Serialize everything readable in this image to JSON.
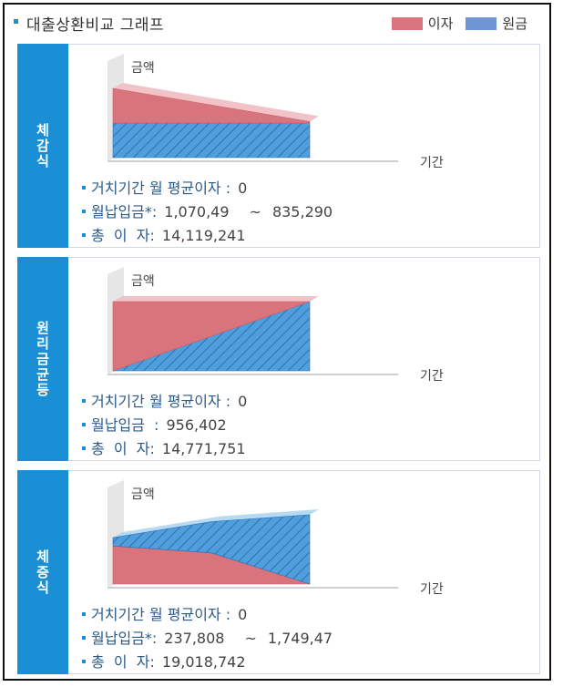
{
  "header": {
    "title": "대출상환비교 그래프"
  },
  "legend": [
    {
      "label": "이자",
      "color": "#d9747c"
    },
    {
      "label": "원금",
      "color": "#6f95d6"
    }
  ],
  "colors": {
    "accent": "#1a8fd6",
    "interest": "#d9747c",
    "interest_light": "#f2c3c6",
    "principal": "#4f9fdc",
    "principal_light": "#b7daf3",
    "axis_wall": "#e6e6e6"
  },
  "axis_labels": {
    "y": "금액",
    "x": "기간"
  },
  "panels": [
    {
      "tab": "체감식",
      "rows": [
        {
          "key": "거치기간 월 평균이자 :",
          "value": "0"
        },
        {
          "key": "월납입금*:",
          "value": "1,070,49",
          "sep": "~",
          "value2": "835,290"
        },
        {
          "key": "총  이  자:",
          "value": "14,119,241"
        }
      ]
    },
    {
      "tab": "원리금균등",
      "rows": [
        {
          "key": "거치기간 월 평균이자 :",
          "value": "0"
        },
        {
          "key": "월납입금  :",
          "value": "956,402"
        },
        {
          "key": "총  이  자:",
          "value": "14,771,751"
        }
      ]
    },
    {
      "tab": "체증식",
      "rows": [
        {
          "key": "거치기간 월 평균이자 :",
          "value": "0"
        },
        {
          "key": "월납입금*:",
          "value": "237,808",
          "sep": "~",
          "value2": "1,749,47"
        },
        {
          "key": "총  이  자:",
          "value": "19,018,742"
        }
      ]
    }
  ],
  "chart_data": [
    {
      "type": "area",
      "name": "체감식",
      "x": [
        0,
        1
      ],
      "series": [
        {
          "name": "원금",
          "values": [
            0.5,
            0.5
          ]
        },
        {
          "name": "이자",
          "values": [
            0.5,
            0.02
          ]
        }
      ],
      "xlabel": "기간",
      "ylabel": "금액",
      "stacked": true
    },
    {
      "type": "area",
      "name": "원리금균등",
      "x": [
        0,
        1
      ],
      "series": [
        {
          "name": "원금",
          "values": [
            0.0,
            1.0
          ]
        },
        {
          "name": "이자",
          "values": [
            1.0,
            0.0
          ]
        }
      ],
      "xlabel": "기간",
      "ylabel": "금액",
      "stacked": true
    },
    {
      "type": "area",
      "name": "체증식",
      "x": [
        0,
        0.5,
        1
      ],
      "series": [
        {
          "name": "이자",
          "values": [
            0.55,
            0.45,
            0.0
          ]
        },
        {
          "name": "원금",
          "values": [
            0.12,
            0.45,
            1.0
          ]
        }
      ],
      "xlabel": "기간",
      "ylabel": "금액",
      "stacked": true
    }
  ]
}
